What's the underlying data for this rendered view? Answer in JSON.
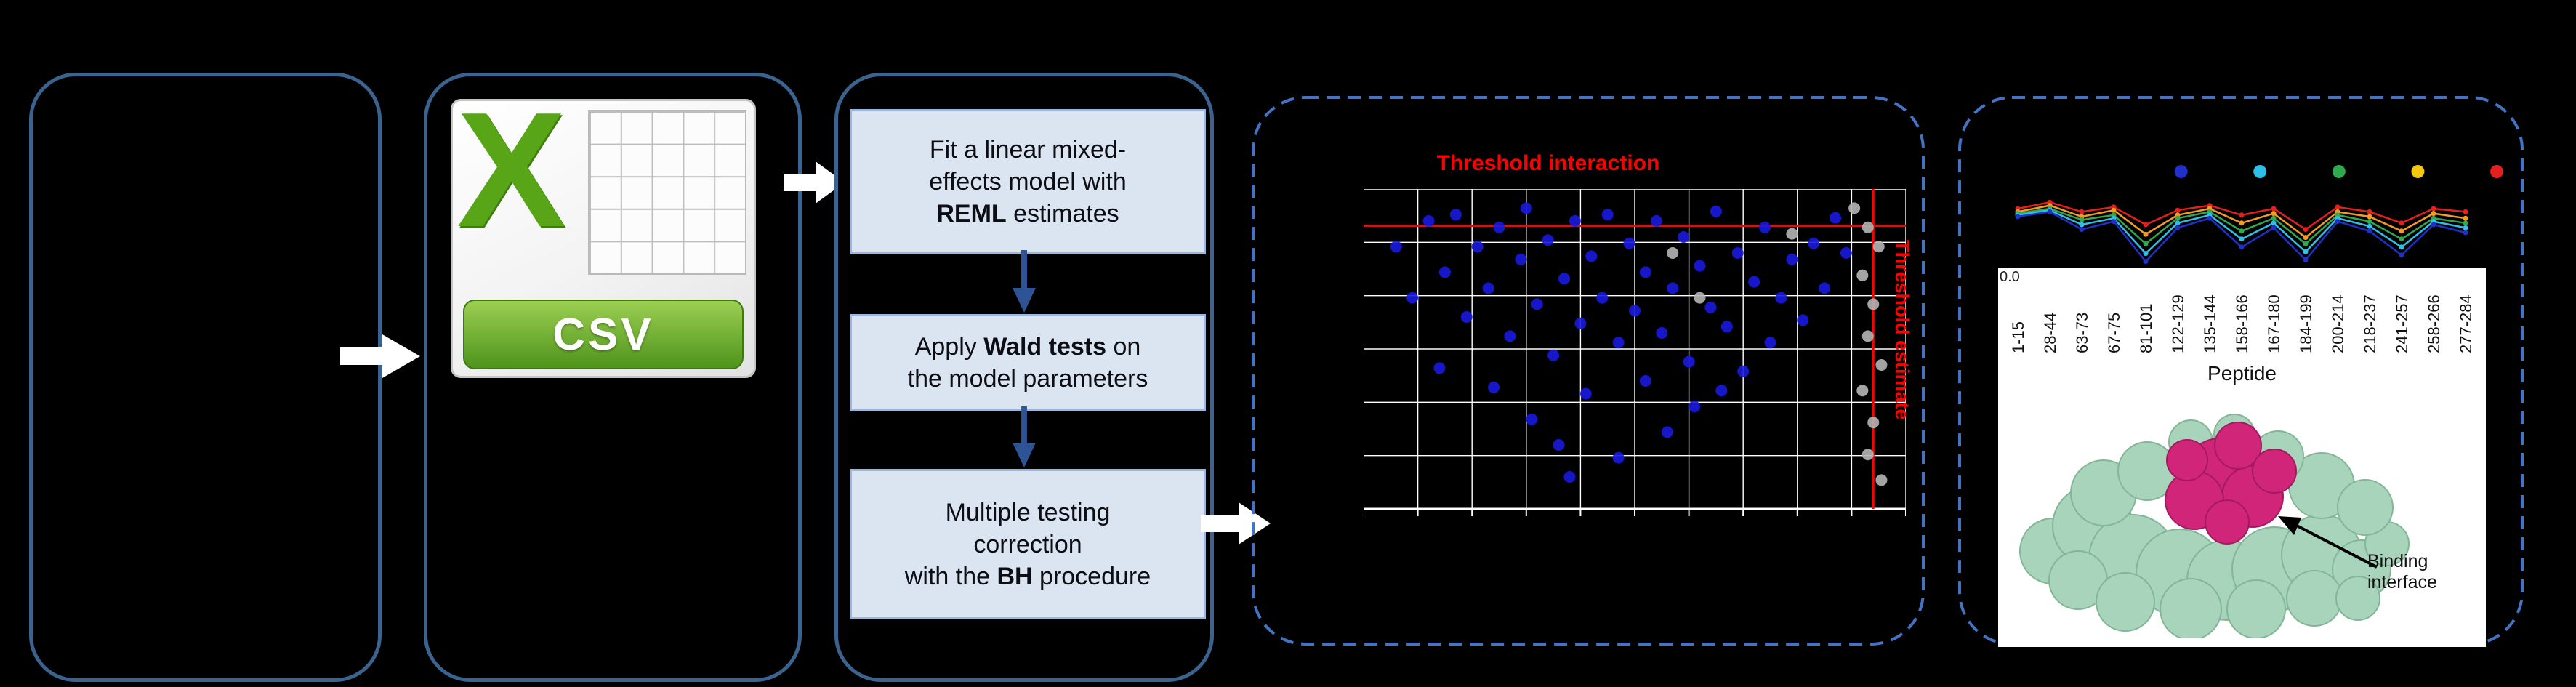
{
  "canvas": {
    "background": "#000000"
  },
  "colors": {
    "solid_box_border": "#3a648f",
    "dashed_box_border": "#4472c4",
    "method_box_fill": "#dbe5f2",
    "method_box_border": "#9db6dd",
    "down_arrow": "#2f5496",
    "block_arrow": "#ffffff",
    "threshold_red": "#ff0000"
  },
  "flow": {
    "csv": {
      "banner_label": "CSV",
      "letter": "X"
    },
    "model_steps": [
      {
        "parts": [
          "Fit a linear mixed-\neffects model with\n",
          "REML",
          " estimates"
        ]
      },
      {
        "parts": [
          "Apply ",
          "Wald tests",
          " on\nthe model parameters"
        ]
      },
      {
        "parts": [
          "Multiple testing\ncorrection\nwith the ",
          "BH",
          " procedure"
        ]
      }
    ]
  },
  "chart_data": {
    "scatter": {
      "type": "scatter",
      "title": "Threshold interaction",
      "title_color": "#ff0000",
      "vertical_label": "Threshold estimate",
      "grid": {
        "cols": 10,
        "rows": 6,
        "color": "#ffffff",
        "on": true
      },
      "thresholds": {
        "h_frac": 0.115,
        "v_frac": 0.94,
        "color": "#ff0000"
      },
      "series": [
        {
          "color": "#1a1ae0",
          "points": [
            [
              0.06,
              0.18
            ],
            [
              0.09,
              0.34
            ],
            [
              0.12,
              0.1
            ],
            [
              0.15,
              0.26
            ],
            [
              0.17,
              0.08
            ],
            [
              0.19,
              0.4
            ],
            [
              0.21,
              0.18
            ],
            [
              0.23,
              0.31
            ],
            [
              0.25,
              0.12
            ],
            [
              0.27,
              0.46
            ],
            [
              0.29,
              0.22
            ],
            [
              0.3,
              0.06
            ],
            [
              0.32,
              0.36
            ],
            [
              0.34,
              0.16
            ],
            [
              0.35,
              0.52
            ],
            [
              0.37,
              0.28
            ],
            [
              0.39,
              0.1
            ],
            [
              0.4,
              0.42
            ],
            [
              0.42,
              0.21
            ],
            [
              0.44,
              0.34
            ],
            [
              0.45,
              0.08
            ],
            [
              0.47,
              0.48
            ],
            [
              0.49,
              0.17
            ],
            [
              0.5,
              0.38
            ],
            [
              0.52,
              0.26
            ],
            [
              0.54,
              0.1
            ],
            [
              0.55,
              0.45
            ],
            [
              0.57,
              0.31
            ],
            [
              0.59,
              0.15
            ],
            [
              0.6,
              0.54
            ],
            [
              0.62,
              0.24
            ],
            [
              0.64,
              0.37
            ],
            [
              0.65,
              0.07
            ],
            [
              0.67,
              0.43
            ],
            [
              0.69,
              0.2
            ],
            [
              0.7,
              0.57
            ],
            [
              0.72,
              0.29
            ],
            [
              0.74,
              0.12
            ],
            [
              0.75,
              0.48
            ],
            [
              0.77,
              0.34
            ],
            [
              0.79,
              0.22
            ],
            [
              0.81,
              0.41
            ],
            [
              0.83,
              0.17
            ],
            [
              0.85,
              0.31
            ],
            [
              0.87,
              0.09
            ],
            [
              0.89,
              0.2
            ],
            [
              0.14,
              0.56
            ],
            [
              0.24,
              0.62
            ],
            [
              0.31,
              0.72
            ],
            [
              0.36,
              0.8
            ],
            [
              0.41,
              0.64
            ],
            [
              0.47,
              0.84
            ],
            [
              0.52,
              0.6
            ],
            [
              0.56,
              0.76
            ],
            [
              0.61,
              0.68
            ],
            [
              0.66,
              0.63
            ],
            [
              0.38,
              0.9
            ]
          ]
        },
        {
          "color": "#b5b5b5",
          "points": [
            [
              0.905,
              0.06
            ],
            [
              0.93,
              0.12
            ],
            [
              0.95,
              0.18
            ],
            [
              0.92,
              0.27
            ],
            [
              0.94,
              0.36
            ],
            [
              0.93,
              0.46
            ],
            [
              0.955,
              0.55
            ],
            [
              0.92,
              0.63
            ],
            [
              0.94,
              0.73
            ],
            [
              0.93,
              0.83
            ],
            [
              0.955,
              0.91
            ],
            [
              0.57,
              0.2
            ],
            [
              0.62,
              0.34
            ],
            [
              0.79,
              0.14
            ]
          ]
        }
      ]
    },
    "uptake_lines": {
      "type": "line",
      "x_categories": [
        "1-15",
        "28-44",
        "63-73",
        "67-75",
        "81-101",
        "122-129",
        "135-144",
        "158-166",
        "167-180",
        "184-199",
        "200-214",
        "218-237",
        "241-257",
        "258-266",
        "277-284"
      ],
      "xlabel": "Peptide",
      "ytick_label": "0.0",
      "legend_dot_colors": [
        "#2030c8",
        "#2ec0e8",
        "#2fa84f",
        "#f5c913",
        "#e51f1f"
      ],
      "series": [
        {
          "color": "#e51f1f",
          "values": [
            0.7,
            0.78,
            0.66,
            0.72,
            0.5,
            0.68,
            0.74,
            0.62,
            0.7,
            0.44,
            0.72,
            0.66,
            0.52,
            0.7,
            0.66
          ]
        },
        {
          "color": "#f59a23",
          "values": [
            0.66,
            0.74,
            0.6,
            0.68,
            0.38,
            0.62,
            0.7,
            0.52,
            0.64,
            0.34,
            0.66,
            0.6,
            0.42,
            0.64,
            0.58
          ]
        },
        {
          "color": "#2fa84f",
          "values": [
            0.64,
            0.7,
            0.56,
            0.62,
            0.26,
            0.58,
            0.66,
            0.42,
            0.58,
            0.26,
            0.62,
            0.54,
            0.32,
            0.58,
            0.52
          ]
        },
        {
          "color": "#2ec0e8",
          "values": [
            0.62,
            0.68,
            0.5,
            0.58,
            0.14,
            0.52,
            0.62,
            0.32,
            0.52,
            0.16,
            0.58,
            0.48,
            0.22,
            0.54,
            0.46
          ]
        },
        {
          "color": "#2030c8",
          "values": [
            0.6,
            0.66,
            0.44,
            0.54,
            0.04,
            0.46,
            0.58,
            0.22,
            0.46,
            0.06,
            0.54,
            0.42,
            0.12,
            0.5,
            0.4
          ]
        }
      ]
    }
  },
  "protein": {
    "surface_color": "#a7d4ba",
    "surface_stroke": "#82b697",
    "epitope_color": "#d02579",
    "epitope_stroke": "#a31a5f"
  },
  "annotations": {
    "binding_interface": "Binding interface"
  }
}
